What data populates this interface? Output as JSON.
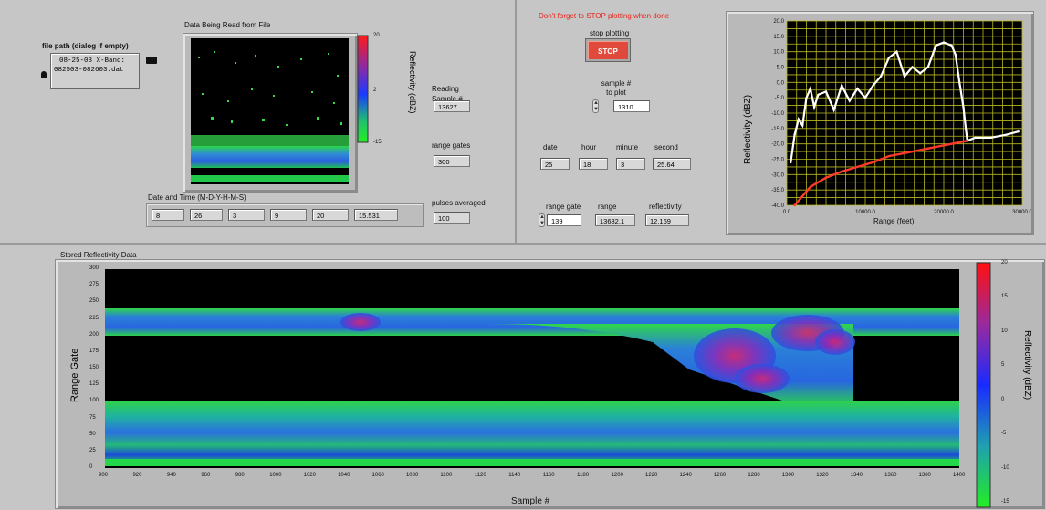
{
  "header": {
    "warning": "Don't forget to STOP plotting when done"
  },
  "file": {
    "label": "file path (dialog if empty)",
    "line1": "08-25-03 X-Band:",
    "line2": "082503-082603.dat"
  },
  "live_plot": {
    "title": "Data Being Read from File",
    "colorbar_label": "Reflectivity (dBZ)",
    "colorbar_ticks": [
      "20",
      "2",
      "-15"
    ]
  },
  "reading": {
    "label": "Reading Sample #",
    "value": "13627"
  },
  "range_gates": {
    "label": "range gates",
    "value": "300"
  },
  "pulses": {
    "label": "pulses averaged",
    "value": "100"
  },
  "datetime": {
    "label": "Date and Time (M-D-Y-H-M-S)",
    "values": [
      "8",
      "26",
      "3",
      "9",
      "20",
      "15.531"
    ]
  },
  "stop": {
    "label": "stop plotting",
    "button": "STOP"
  },
  "sample_to_plot": {
    "label": "sample # to plot",
    "value": "1310"
  },
  "date_fields": [
    {
      "label": "date",
      "value": "25"
    },
    {
      "label": "hour",
      "value": "18"
    },
    {
      "label": "minute",
      "value": "3"
    },
    {
      "label": "second",
      "value": "25.64"
    }
  ],
  "gate_fields": [
    {
      "label": "range gate",
      "value": "139"
    },
    {
      "label": "range",
      "value": "13682.1"
    },
    {
      "label": "reflectivity",
      "value": "12.169"
    }
  ],
  "profile_chart": {
    "ylabel": "Reflectivity (dBZ)",
    "xlabel": "Range (feet)",
    "yticks": [
      "20.0",
      "15.0",
      "10.0",
      "5.0",
      "0.0",
      "-5.0",
      "-10.0",
      "-15.0",
      "-20.0",
      "-25.0",
      "-30.0",
      "-35.0",
      "-40.0"
    ],
    "xticks": [
      "0.0",
      "10000.0",
      "20000.0",
      "30000.0"
    ],
    "colors": {
      "background": "#000000",
      "grid": "#b8b820",
      "profile": "#ffffff",
      "noise": "#ff3a2a"
    }
  },
  "stored": {
    "title": "Stored Reflectivity Data",
    "ylabel": "Range Gate",
    "xlabel": "Sample #",
    "yticks": [
      "300",
      "275",
      "250",
      "225",
      "200",
      "175",
      "150",
      "125",
      "100",
      "75",
      "50",
      "25",
      "0"
    ],
    "xticks": [
      "900",
      "920",
      "940",
      "960",
      "980",
      "1000",
      "1020",
      "1040",
      "1060",
      "1080",
      "1100",
      "1120",
      "1140",
      "1160",
      "1180",
      "1200",
      "1220",
      "1240",
      "1260",
      "1280",
      "1300",
      "1320",
      "1340",
      "1360",
      "1380",
      "1400"
    ],
    "colorbar_label": "Reflectivity (dBZ)",
    "colorbar_ticks": [
      "20",
      "15",
      "10",
      "5",
      "0",
      "-5",
      "-10",
      "-15"
    ]
  },
  "chart_data": {
    "type": "line",
    "xlabel": "Range (feet)",
    "ylabel": "Reflectivity (dBZ)",
    "xlim": [
      0,
      30000
    ],
    "ylim": [
      -40,
      20
    ],
    "grid": true,
    "series": [
      {
        "x": [
          500,
          1000,
          1500,
          2000,
          2500,
          3000,
          3500,
          4000,
          5000,
          6000,
          7000,
          8000,
          9000,
          10000,
          11000,
          12000,
          13000,
          14000,
          15000,
          16000,
          17000,
          18000,
          19000,
          20000,
          21000,
          21500,
          22000,
          22500,
          22800,
          23000,
          24000,
          26000,
          28000,
          29500
        ],
        "values": [
          -26,
          -17,
          -12,
          -14,
          -5,
          -2,
          -8,
          -4,
          -3,
          -9,
          -1,
          -6,
          -2,
          -5,
          -1,
          2,
          8,
          10,
          2,
          5,
          3,
          5,
          12,
          13,
          12,
          9,
          0,
          -8,
          -15,
          -19,
          -18,
          -18,
          -17,
          -16
        ]
      },
      {
        "x": [
          1000,
          3000,
          5000,
          7000,
          9000,
          11000,
          13000,
          15000,
          17000,
          19000,
          21000,
          23000
        ],
        "values": [
          -40,
          -34,
          -31,
          -29,
          -27.5,
          -26,
          -24,
          -23,
          -22,
          -21,
          -20,
          -19
        ]
      }
    ]
  }
}
